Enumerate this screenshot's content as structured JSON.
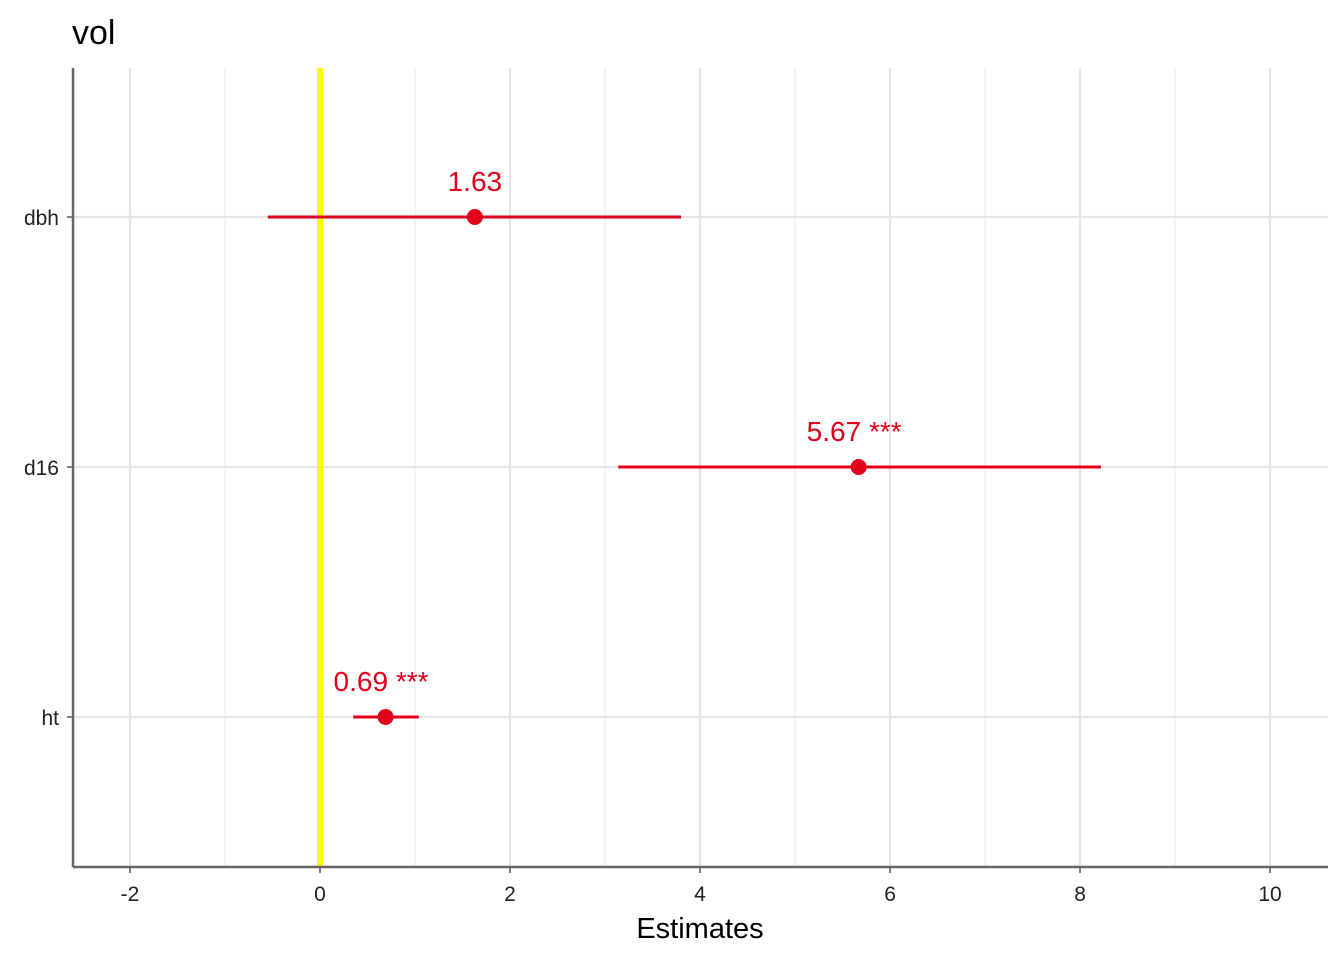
{
  "chart_data": {
    "type": "forest",
    "title": "vol",
    "xlabel": "Estimates",
    "ylabel": "",
    "xlim": [
      -2.6,
      10.61
    ],
    "xticks": [
      -2,
      0,
      2,
      4,
      6,
      8,
      10
    ],
    "xtick_labels": [
      "-2",
      "0",
      "2",
      "4",
      "6",
      "8",
      "10"
    ],
    "grid": true,
    "reference_line": {
      "x": 0,
      "color": "#ffff00"
    },
    "point_color": "#e0001b",
    "categories": [
      "dbh",
      "d16",
      "ht"
    ],
    "estimates": [
      1.63,
      5.67,
      0.69
    ],
    "ci_low": [
      -0.55,
      3.14,
      0.35
    ],
    "ci_high": [
      3.8,
      8.22,
      1.04
    ],
    "labels": [
      "1.63",
      "5.67 ***",
      "0.69 ***"
    ]
  }
}
